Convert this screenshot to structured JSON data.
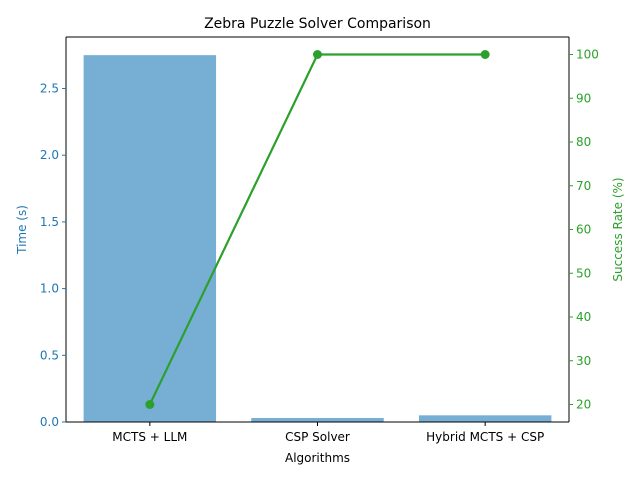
{
  "chart_data": {
    "type": "bar+line",
    "title": "Zebra Puzzle Solver Comparison",
    "xlabel": "Algorithms",
    "categories": [
      "MCTS + LLM",
      "CSP Solver",
      "Hybrid MCTS + CSP"
    ],
    "bar_series": {
      "name": "Time (s)",
      "axis": "left",
      "values": [
        2.75,
        0.03,
        0.05
      ],
      "color": "#77aed4"
    },
    "line_series": {
      "name": "Success Rate (%)",
      "axis": "right",
      "values": [
        20,
        100,
        100
      ],
      "color": "#2ca02c"
    },
    "left_axis": {
      "label": "Time (s)",
      "color": "#1f77b4",
      "ylim": [
        0,
        2.886
      ],
      "ticks": [
        0.0,
        0.5,
        1.0,
        1.5,
        2.0,
        2.5
      ],
      "tick_labels": [
        "0.0",
        "0.5",
        "1.0",
        "1.5",
        "2.0",
        "2.5"
      ]
    },
    "right_axis": {
      "label": "Success Rate (%)",
      "color": "#2ca02c",
      "ylim": [
        16,
        104
      ],
      "ticks": [
        20,
        30,
        40,
        50,
        60,
        70,
        80,
        90,
        100
      ],
      "tick_labels": [
        "20",
        "30",
        "40",
        "50",
        "60",
        "70",
        "80",
        "90",
        "100"
      ]
    },
    "grid": false,
    "legend": "none"
  }
}
